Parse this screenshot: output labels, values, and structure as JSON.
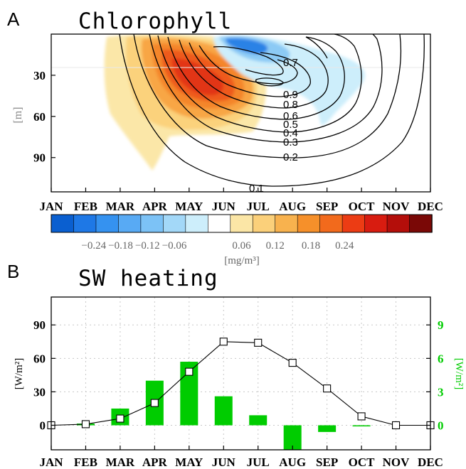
{
  "chart_data": [
    {
      "panel": "A",
      "type": "heatmap",
      "title": "Chlorophyll",
      "ylabel": "[m]",
      "ylim": [
        115,
        0
      ],
      "yticks": [
        30,
        60,
        90
      ],
      "categories": [
        "JAN",
        "FEB",
        "MAR",
        "APR",
        "MAY",
        "JUN",
        "JUL",
        "AUG",
        "SEP",
        "OCT",
        "NOV",
        "DEC"
      ],
      "contour_levels": [
        "0.1",
        "0.2",
        "0.3",
        "0.4",
        "0.5",
        "0.6",
        "0.8",
        "0.9",
        "0.7"
      ],
      "colorbar": {
        "unit": "[mg/m³]",
        "tick_labels": [
          "−0.24",
          "−0.18",
          "−0.12",
          "−0.06",
          "0.06",
          "0.12",
          "0.18",
          "0.24"
        ],
        "colors": [
          "#0a5fd0",
          "#1e78e6",
          "#3592f0",
          "#58aaf4",
          "#7cc2f6",
          "#a3d8f8",
          "#cdeefb",
          "#ffffff",
          "#fbe6a6",
          "#fbd07a",
          "#f8b24e",
          "#f6902a",
          "#f26a1c",
          "#ec3c14",
          "#d81c10",
          "#b40e0a",
          "#7a0806"
        ]
      }
    },
    {
      "panel": "B",
      "type": "bar",
      "title": "SW heating",
      "categories": [
        "JAN",
        "FEB",
        "MAR",
        "APR",
        "MAY",
        "JUN",
        "JUL",
        "AUG",
        "SEP",
        "OCT",
        "NOV",
        "DEC"
      ],
      "ylabel_left": "[W/m²]",
      "ylabel_right": "[W/m²]",
      "ylim_left": [
        -22,
        115
      ],
      "ylim_right": [
        -2.2,
        11.5
      ],
      "yticks_left": [
        0,
        30,
        60,
        90
      ],
      "yticks_right": [
        0,
        3,
        6,
        9
      ],
      "series": [
        {
          "type": "line",
          "axis": "left",
          "values": [
            0,
            1,
            6,
            20,
            48,
            75,
            74,
            56,
            33,
            8,
            0,
            0
          ]
        },
        {
          "type": "bar",
          "axis": "right",
          "color": "#00cc00",
          "values": [
            0,
            0.15,
            1.5,
            4.0,
            5.7,
            2.6,
            0.9,
            -2.2,
            -0.6,
            -0.1,
            0,
            0
          ]
        }
      ]
    }
  ]
}
